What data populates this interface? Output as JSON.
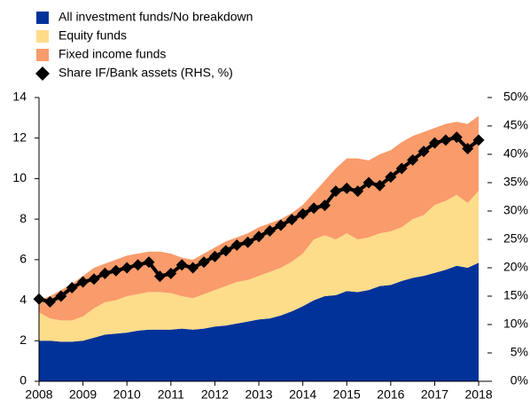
{
  "chart_data": {
    "type": "stacked-area-line",
    "legend": "upper left",
    "x": [
      2008,
      2008.25,
      2008.5,
      2008.75,
      2009,
      2009.25,
      2009.5,
      2009.75,
      2010,
      2010.25,
      2010.5,
      2010.75,
      2011,
      2011.25,
      2011.5,
      2011.75,
      2012,
      2012.25,
      2012.5,
      2012.75,
      2013,
      2013.25,
      2013.5,
      2013.75,
      2014,
      2014.25,
      2014.5,
      2014.75,
      2015,
      2015.25,
      2015.5,
      2015.75,
      2016,
      2016.25,
      2016.5,
      2016.75,
      2017,
      2017.25,
      2017.5,
      2017.75,
      2018
    ],
    "xlim": [
      2008,
      2018.2
    ],
    "xticks": [
      2008,
      2009,
      2010,
      2011,
      2012,
      2013,
      2014,
      2015,
      2016,
      2017,
      2018
    ],
    "ylim": [
      0,
      14
    ],
    "yticks": [
      0,
      2,
      4,
      6,
      8,
      10,
      12,
      14
    ],
    "y2lim": [
      0,
      50
    ],
    "y2ticks": [
      {
        "value": 0,
        "label": "0%"
      },
      {
        "value": 5,
        "label": "5%"
      },
      {
        "value": 10,
        "label": "10%"
      },
      {
        "value": 15,
        "label": "15%"
      },
      {
        "value": 20,
        "label": "20%"
      },
      {
        "value": 25,
        "label": "25%"
      },
      {
        "value": 30,
        "label": "30%"
      },
      {
        "value": 35,
        "label": "35%"
      },
      {
        "value": 40,
        "label": "40%"
      },
      {
        "value": 45,
        "label": "45%"
      },
      {
        "value": 50,
        "label": "50%"
      }
    ],
    "series": [
      {
        "name": "All investment funds/No breakdown",
        "color": "#003299",
        "kind": "area",
        "values": [
          2.0,
          2.0,
          1.95,
          1.95,
          2.0,
          2.15,
          2.3,
          2.35,
          2.4,
          2.5,
          2.55,
          2.55,
          2.55,
          2.6,
          2.55,
          2.6,
          2.7,
          2.75,
          2.85,
          2.95,
          3.05,
          3.1,
          3.25,
          3.45,
          3.7,
          4.0,
          4.2,
          4.25,
          4.45,
          4.4,
          4.5,
          4.7,
          4.75,
          4.95,
          5.1,
          5.2,
          5.35,
          5.5,
          5.7,
          5.6,
          5.85
        ]
      },
      {
        "name": "Equity funds",
        "color": "#fddc8a",
        "kind": "area",
        "values": [
          1.4,
          1.1,
          1.05,
          1.05,
          1.2,
          1.45,
          1.6,
          1.65,
          1.8,
          1.8,
          1.85,
          1.85,
          1.8,
          1.6,
          1.55,
          1.7,
          1.8,
          1.95,
          2.05,
          2.05,
          2.15,
          2.3,
          2.35,
          2.45,
          2.6,
          3.0,
          3.0,
          2.75,
          2.85,
          2.6,
          2.6,
          2.6,
          2.65,
          2.65,
          2.9,
          3.0,
          3.35,
          3.4,
          3.5,
          3.2,
          3.55
        ]
      },
      {
        "name": "Fixed income funds",
        "color": "#f99b6b",
        "kind": "area",
        "values": [
          0.6,
          1.1,
          1.5,
          1.8,
          2.0,
          2.0,
          1.9,
          2.0,
          2.0,
          2.0,
          2.0,
          2.0,
          1.95,
          1.9,
          1.9,
          2.0,
          2.1,
          2.2,
          2.2,
          2.3,
          2.4,
          2.4,
          2.4,
          2.4,
          2.4,
          2.3,
          2.7,
          3.5,
          3.7,
          4.0,
          3.8,
          3.9,
          4.0,
          4.2,
          4.1,
          4.1,
          3.8,
          3.8,
          3.6,
          3.9,
          3.7
        ]
      },
      {
        "name": "Share IF/Bank assets (RHS, %)",
        "color": "#000000",
        "kind": "line",
        "axis": "y2",
        "values": [
          14.5,
          14,
          15,
          16.5,
          17.5,
          18,
          19,
          19.5,
          20,
          20.5,
          21,
          18.5,
          19,
          20.5,
          20,
          21,
          22,
          23,
          24,
          24.5,
          25.5,
          26.5,
          27.5,
          28.5,
          29.5,
          30.5,
          31,
          33.5,
          34,
          33.5,
          35,
          34.5,
          36,
          37.5,
          39,
          40.5,
          42,
          42.5,
          43,
          41,
          42.5
        ]
      }
    ]
  }
}
